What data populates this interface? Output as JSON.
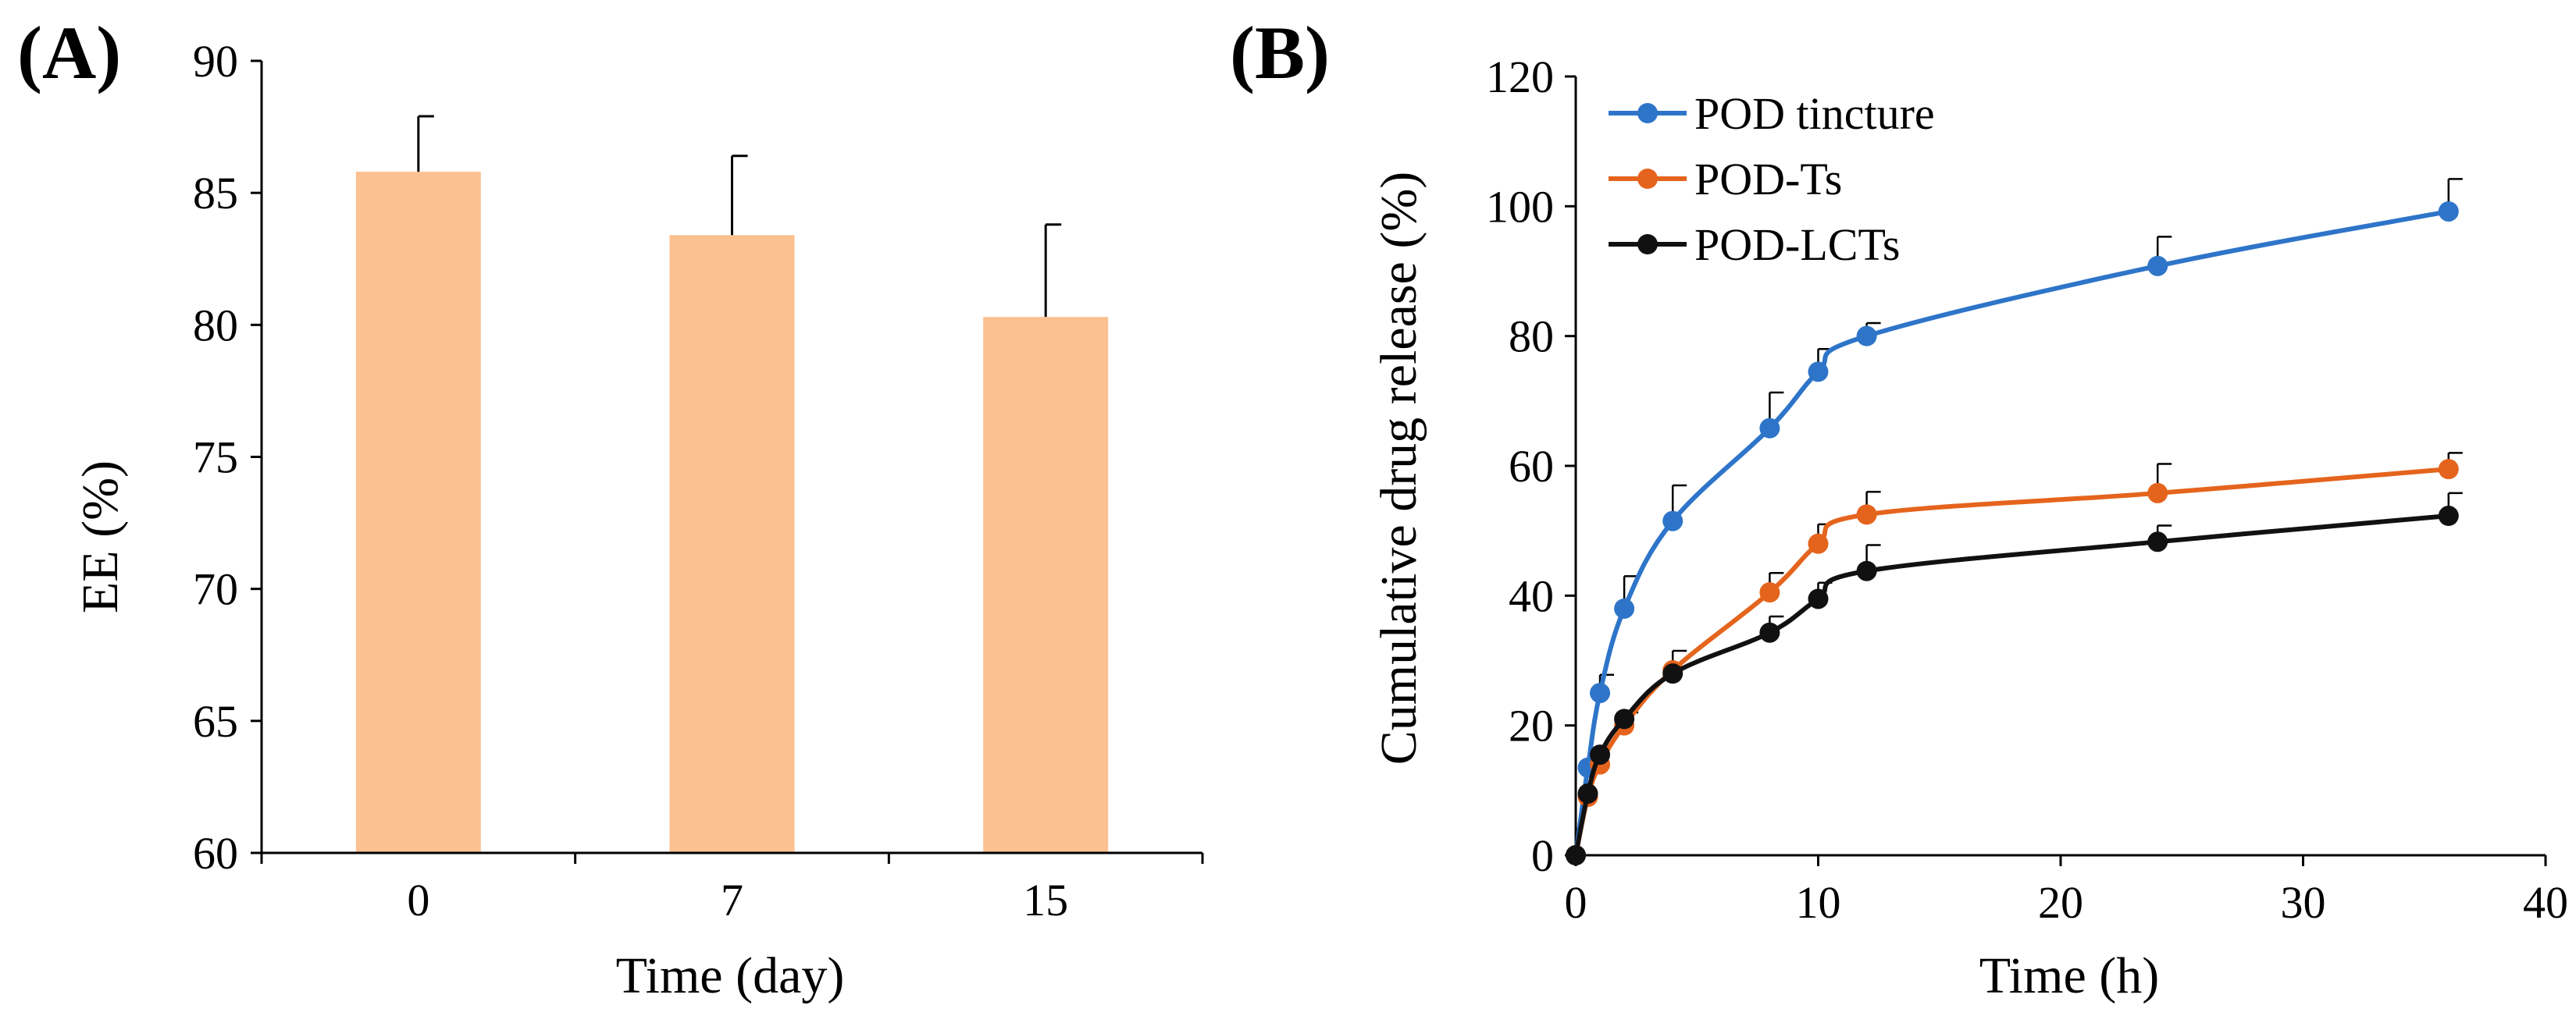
{
  "chart_data": [
    {
      "panel": "(A)",
      "type": "bar",
      "xlabel": "Time (day)",
      "ylabel": "EE (%)",
      "categories": [
        "0",
        "7",
        "15"
      ],
      "values": [
        85.8,
        83.4,
        80.3
      ],
      "errors": [
        2.1,
        3.0,
        3.5
      ],
      "ylim": [
        60,
        90
      ],
      "yticks": [
        "60",
        "65",
        "70",
        "75",
        "80",
        "85",
        "90"
      ],
      "bar_color": "#FCC190",
      "grid": false
    },
    {
      "panel": "(B)",
      "type": "line",
      "xlabel": "Time (h)",
      "ylabel": "Cumulative drug release (%)",
      "xlim": [
        0,
        40
      ],
      "ylim": [
        0,
        120
      ],
      "xticks": [
        "0",
        "10",
        "20",
        "30",
        "40"
      ],
      "yticks": [
        "0",
        "20",
        "40",
        "60",
        "80",
        "100",
        "120"
      ],
      "legend_position": "top-left",
      "grid": false,
      "series": [
        {
          "name": "POD tincture",
          "color": "#2E75C9",
          "x": [
            0,
            0.5,
            1,
            2,
            4,
            8,
            10,
            12,
            24,
            36
          ],
          "y": [
            0,
            13.5,
            25,
            38,
            51.5,
            65.8,
            74.5,
            80,
            90.8,
            99.2
          ],
          "err": [
            0,
            0,
            2.8,
            5,
            5.5,
            5.5,
            3.5,
            2,
            4.5,
            5
          ]
        },
        {
          "name": "POD-Ts",
          "color": "#E5641D",
          "x": [
            0,
            0.5,
            1,
            2,
            4,
            8,
            10,
            12,
            24,
            36
          ],
          "y": [
            0,
            9,
            14,
            20,
            28.5,
            40.5,
            48,
            52.5,
            55.8,
            59.5
          ],
          "err": [
            0,
            0,
            0,
            2,
            3,
            3,
            3,
            3.5,
            4.5,
            2.5
          ]
        },
        {
          "name": "POD-LCTs",
          "color": "#111111",
          "x": [
            0,
            0.5,
            1,
            2,
            4,
            8,
            10,
            12,
            24,
            36
          ],
          "y": [
            0,
            9.5,
            15.5,
            21,
            28,
            34.3,
            39.5,
            43.8,
            48.3,
            52.3
          ],
          "err": [
            0,
            0,
            0,
            0,
            0,
            2.5,
            2.5,
            4,
            2.5,
            3.5
          ]
        }
      ]
    }
  ]
}
